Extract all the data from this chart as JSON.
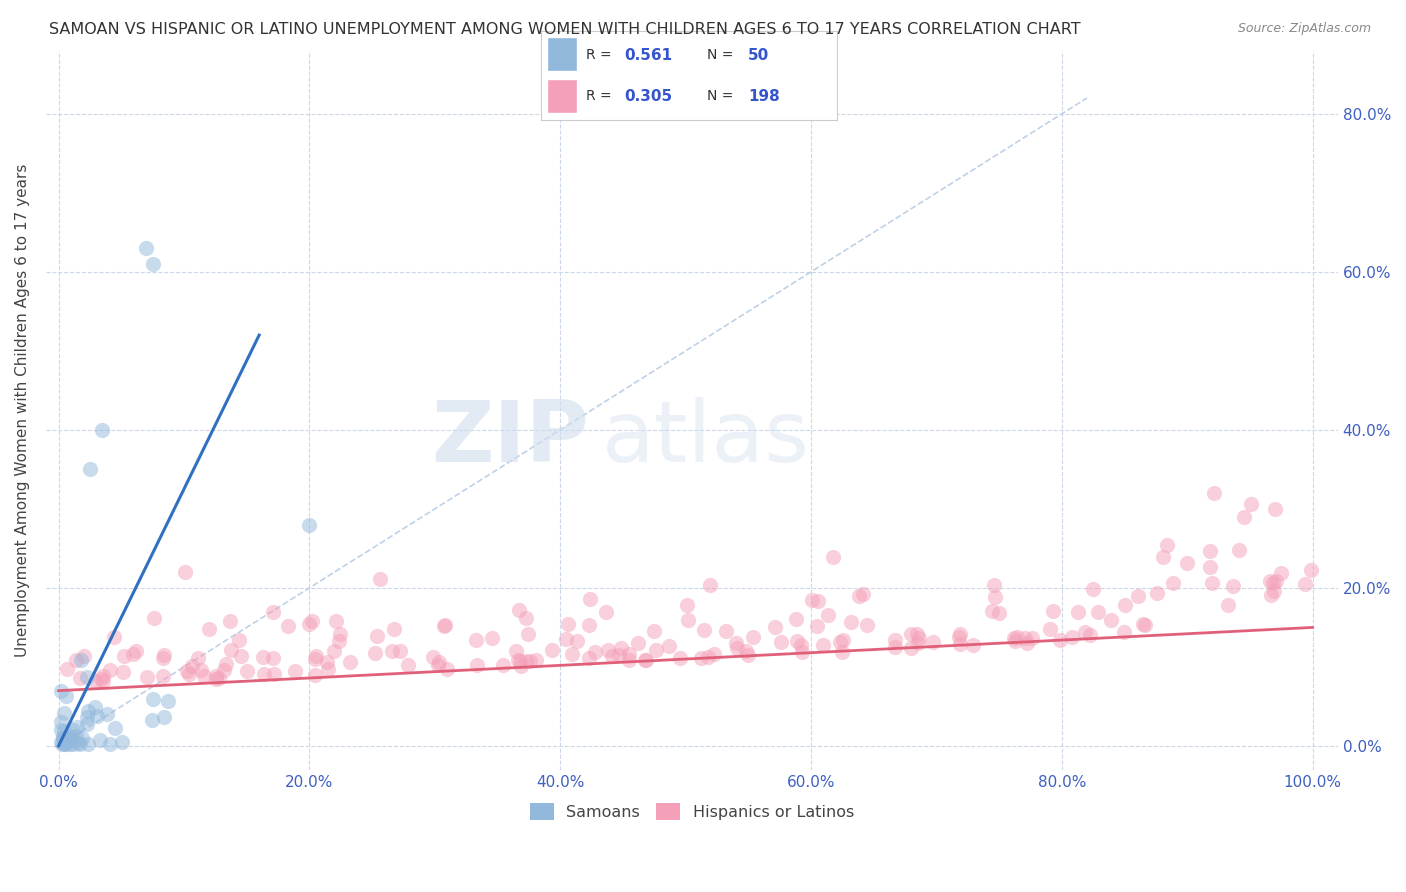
{
  "title": "SAMOAN VS HISPANIC OR LATINO UNEMPLOYMENT AMONG WOMEN WITH CHILDREN AGES 6 TO 17 YEARS CORRELATION CHART",
  "source": "Source: ZipAtlas.com",
  "ylabel": "Unemployment Among Women with Children Ages 6 to 17 years",
  "x_tick_labels": [
    "0.0%",
    "20.0%",
    "40.0%",
    "60.0%",
    "80.0%",
    "100.0%"
  ],
  "x_tick_values": [
    0,
    20,
    40,
    60,
    80,
    100
  ],
  "y_tick_labels": [
    "0.0%",
    "20.0%",
    "40.0%",
    "60.0%",
    "80.0%"
  ],
  "y_tick_values": [
    0,
    20,
    40,
    60,
    80
  ],
  "xlim": [
    -1,
    102
  ],
  "ylim": [
    -3,
    88
  ],
  "blue_color": "#92b8dc",
  "pink_color": "#f4a0b8",
  "blue_line_color": "#3070c0",
  "pink_line_color": "#e0607a",
  "ref_line_color": "#b8cce4",
  "background_color": "#ffffff",
  "grid_color": "#ccd8e8",
  "tick_color": "#4060c0",
  "title_fontsize": 11.5,
  "axis_label_fontsize": 11,
  "tick_fontsize": 11,
  "R_N_color": "#3555cc",
  "scatter_alpha": 0.5,
  "scatter_size": 120,
  "legend_R1": "0.561",
  "legend_N1": "50",
  "legend_R2": "0.305",
  "legend_N2": "198",
  "label1": "Samoans",
  "label2": "Hispanics or Latinos",
  "blue_line_x0": 0,
  "blue_line_y0": 0,
  "blue_line_x1": 16,
  "blue_line_y1": 52,
  "pink_line_x0": 0,
  "pink_line_y0": 7,
  "pink_line_x1": 100,
  "pink_line_y1": 15
}
